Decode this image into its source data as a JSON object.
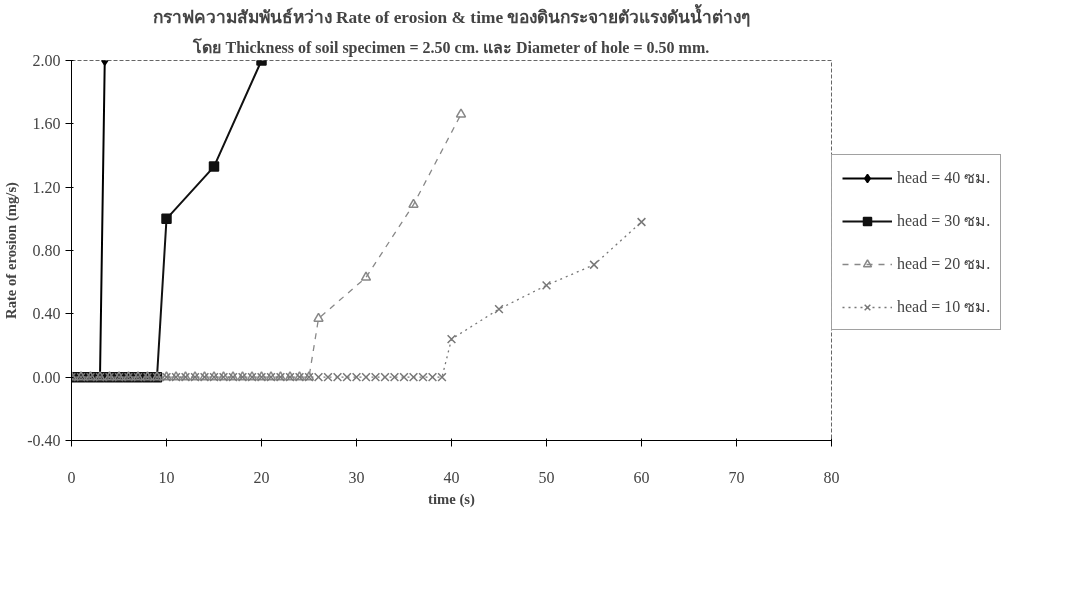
{
  "chart_data": {
    "type": "line",
    "title": "กราฟความสัมพันธ์หว่าง Rate of erosion & time ของดินกระจายตัวแรงดันน้ำต่างๆ",
    "subtitle": "โดย Thickness of soil specimen = 2.50 cm. และ Diameter of hole = 0.50 mm.",
    "xlabel": "time (s)",
    "ylabel": "Rate of erosion (mg/s)",
    "xlim": [
      0,
      80
    ],
    "xticks": [
      0,
      10,
      20,
      30,
      40,
      50,
      60,
      70,
      80
    ],
    "ylim": [
      -0.4,
      2.0
    ],
    "yticks": [
      {
        "value": -0.4,
        "label": "-0.40"
      },
      {
        "value": 0,
        "label": "0.00"
      },
      {
        "value": 0.4,
        "label": "0.40"
      },
      {
        "value": 0.8,
        "label": "0.80"
      },
      {
        "value": 1.2,
        "label": "1.20"
      },
      {
        "value": 1.6,
        "label": "1.60"
      },
      {
        "value": 2.0,
        "label": "2.00"
      }
    ],
    "grid": false,
    "legend": "right",
    "series": [
      {
        "name": "head = 40 ซม.",
        "color": "#000000",
        "marker": "diamond",
        "line_style": "solid",
        "x": [
          0,
          0.5,
          1,
          1.5,
          2,
          2.5,
          3,
          3.5
        ],
        "values": [
          0,
          0,
          0,
          0,
          0,
          0,
          0,
          2.0
        ]
      },
      {
        "name": "head = 30 ซม.",
        "color": "#111111",
        "marker": "square",
        "line_style": "solid",
        "x": [
          0,
          1,
          2,
          3,
          4,
          5,
          6,
          7,
          8,
          9,
          10,
          15,
          20
        ],
        "values": [
          0,
          0,
          0,
          0,
          0,
          0,
          0,
          0,
          0,
          0,
          1.0,
          1.33,
          2.0
        ]
      },
      {
        "name": "head = 20 ซม.",
        "color": "#888888",
        "marker": "triangle",
        "line_style": "dashed",
        "x": [
          0,
          1,
          2,
          3,
          4,
          5,
          6,
          7,
          8,
          9,
          10,
          11,
          12,
          13,
          14,
          15,
          16,
          17,
          18,
          19,
          20,
          21,
          22,
          23,
          24,
          25,
          26,
          31,
          36,
          41
        ],
        "values": [
          0,
          0,
          0,
          0,
          0,
          0,
          0,
          0,
          0,
          0,
          0,
          0,
          0,
          0,
          0,
          0,
          0,
          0,
          0,
          0,
          0,
          0,
          0,
          0,
          0,
          0,
          0.37,
          0.63,
          1.09,
          1.66
        ]
      },
      {
        "name": "head = 10 ซม.",
        "color": "#777777",
        "marker": "cross",
        "line_style": "dotted",
        "x": [
          0,
          1,
          2,
          3,
          4,
          5,
          6,
          7,
          8,
          9,
          10,
          11,
          12,
          13,
          14,
          15,
          16,
          17,
          18,
          19,
          20,
          21,
          22,
          23,
          24,
          25,
          26,
          27,
          28,
          29,
          30,
          31,
          32,
          33,
          34,
          35,
          36,
          37,
          38,
          39,
          40,
          45,
          50,
          55,
          60
        ],
        "values": [
          0,
          0,
          0,
          0,
          0,
          0,
          0,
          0,
          0,
          0,
          0,
          0,
          0,
          0,
          0,
          0,
          0,
          0,
          0,
          0,
          0,
          0,
          0,
          0,
          0,
          0,
          0,
          0,
          0,
          0,
          0,
          0,
          0,
          0,
          0,
          0,
          0,
          0,
          0,
          0,
          0.24,
          0.43,
          0.58,
          0.71,
          0.98
        ]
      }
    ]
  }
}
